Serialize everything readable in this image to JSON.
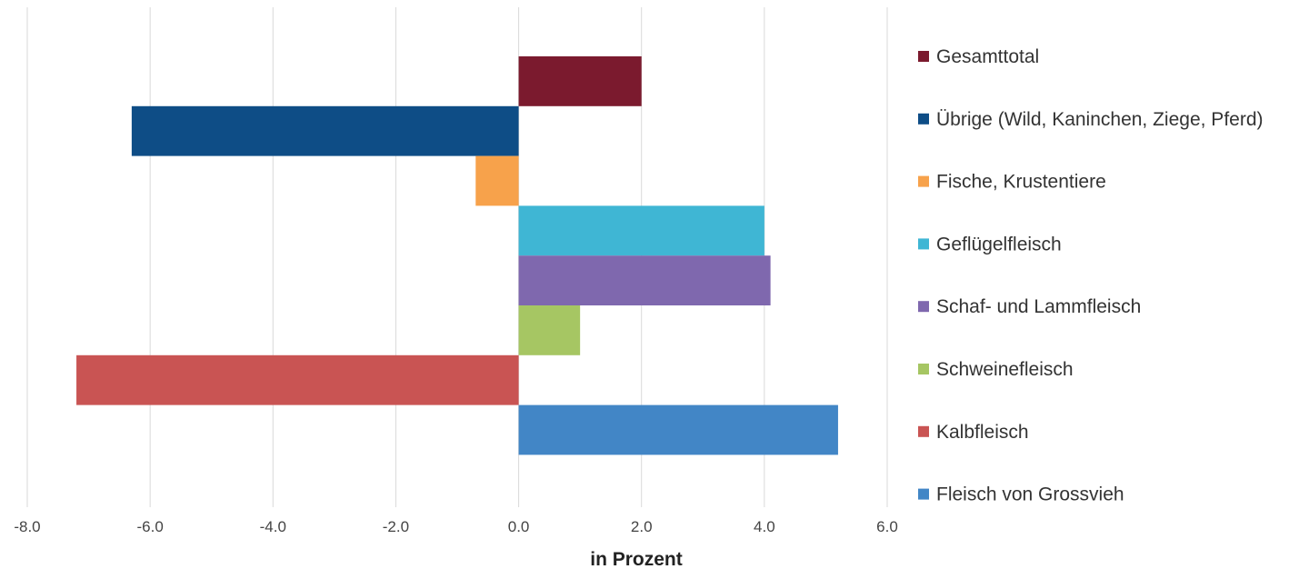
{
  "chart_data": {
    "type": "bar",
    "orientation": "horizontal",
    "title": "",
    "xlabel": "in Prozent",
    "ylabel": "",
    "xlim": [
      -8.0,
      6.0
    ],
    "xticks": [
      -8.0,
      -6.0,
      -4.0,
      -2.0,
      0.0,
      2.0,
      4.0,
      6.0
    ],
    "tick_labels": [
      "-8.0",
      "-6.0",
      "-4.0",
      "-2.0",
      "0.0",
      "2.0",
      "4.0",
      "6.0"
    ],
    "grid": "vertical",
    "legend_position": "right",
    "series": [
      {
        "name": "Gesamttotal",
        "value": 2.0,
        "color": "#7B1A2E"
      },
      {
        "name": "Übrige (Wild, Kaninchen, Ziege, Pferd)",
        "value": -6.3,
        "color": "#0E4D86"
      },
      {
        "name": "Fische, Krustentiere",
        "value": -0.7,
        "color": "#F7A24B"
      },
      {
        "name": "Geflügelfleisch",
        "value": 4.0,
        "color": "#3FB6D4"
      },
      {
        "name": "Schaf- und Lammfleisch",
        "value": 4.1,
        "color": "#7F68AE"
      },
      {
        "name": "Schweinefleisch",
        "value": 1.0,
        "color": "#A6C663"
      },
      {
        "name": "Kalbfleisch",
        "value": -7.2,
        "color": "#C95453"
      },
      {
        "name": "Fleisch von Grossvieh",
        "value": 5.2,
        "color": "#4286C6"
      }
    ]
  }
}
